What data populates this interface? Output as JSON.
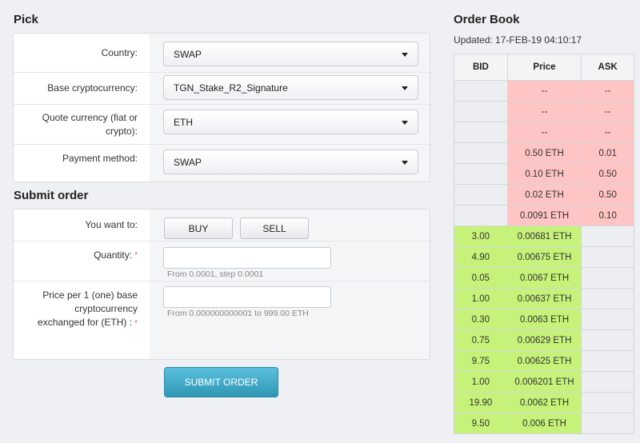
{
  "pick": {
    "title": "Pick",
    "rows": [
      {
        "label": "Country:",
        "value": "SWAP"
      },
      {
        "label": "Base cryptocurrency:",
        "value": "TGN_Stake_R2_Signature"
      },
      {
        "label": "Quote currency (fiat or crypto):",
        "value": "ETH"
      },
      {
        "label": "Payment method:",
        "value": "SWAP"
      }
    ]
  },
  "submit_order": {
    "title": "Submit order",
    "want_label": "You want to:",
    "buy_label": "BUY",
    "sell_label": "SELL",
    "quantity_label": "Quantity:",
    "quantity_value": "",
    "quantity_hint": "From 0.0001, step 0.0001",
    "price_label": "Price per 1 (one) base cryptocurrency exchanged for (ETH) :",
    "price_value": "",
    "price_hint": "From 0.000000000001 to 999.00 ETH",
    "required_mark": "*",
    "submit_label": "SUBMIT ORDER"
  },
  "order_book": {
    "title": "Order Book",
    "updated": "Updated: 17-FEB-19 04:10:17",
    "headers": {
      "bid": "BID",
      "price": "Price",
      "ask": "ASK"
    },
    "asks": [
      {
        "price": "--",
        "ask": "--"
      },
      {
        "price": "--",
        "ask": "--"
      },
      {
        "price": "--",
        "ask": "--"
      },
      {
        "price": "0.50 ETH",
        "ask": "0.01"
      },
      {
        "price": "0.10 ETH",
        "ask": "0.50"
      },
      {
        "price": "0.02 ETH",
        "ask": "0.50"
      },
      {
        "price": "0.0091 ETH",
        "ask": "0.10"
      }
    ],
    "bids": [
      {
        "bid": "3.00",
        "price": "0.00681 ETH"
      },
      {
        "bid": "4.90",
        "price": "0.00675 ETH"
      },
      {
        "bid": "0.05",
        "price": "0.0067 ETH"
      },
      {
        "bid": "1.00",
        "price": "0.00637 ETH"
      },
      {
        "bid": "0.30",
        "price": "0.0063 ETH"
      },
      {
        "bid": "0.75",
        "price": "0.00629 ETH"
      },
      {
        "bid": "9.75",
        "price": "0.00625 ETH"
      },
      {
        "bid": "1.00",
        "price": "0.006201 ETH"
      },
      {
        "bid": "19.90",
        "price": "0.0062 ETH"
      },
      {
        "bid": "9.50",
        "price": "0.006 ETH"
      }
    ]
  },
  "colors": {
    "ask_bg": "#ffc4c4",
    "bid_bg": "#c6f27a",
    "submit_bg": "#3aa6c8"
  }
}
